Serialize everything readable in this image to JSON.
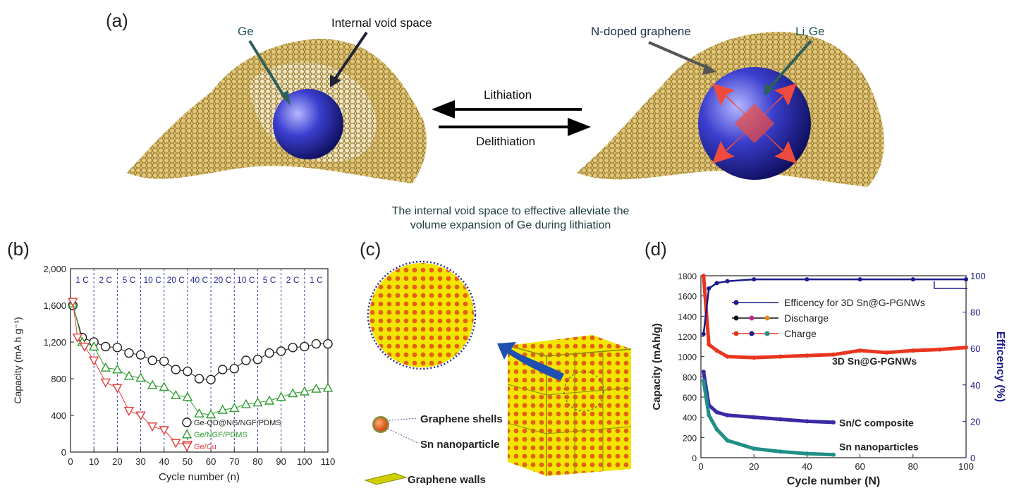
{
  "panel_a": {
    "label": "(a)",
    "ge_label": "Ge",
    "void_label": "Internal void space",
    "ngraphene_label": "N-doped graphene",
    "lixge_li": "Li",
    "lixge_x": "x",
    "lixge_ge": "Ge",
    "lithiation": "Lithiation",
    "delithiation": "Delithiation",
    "note_line1": "The internal void space to effective alleviate the",
    "note_line2": "volume expansion of Ge during lithiation"
  },
  "panel_b": {
    "label": "(b)",
    "chart_data": {
      "type": "scatter",
      "xlabel": "Cycle number (n)",
      "ylabel": "Capacity (mA h g⁻¹)",
      "xlim": [
        0,
        110
      ],
      "ylim": [
        0,
        2000
      ],
      "xticks": [
        "0",
        "10",
        "20",
        "30",
        "40",
        "50",
        "60",
        "70",
        "80",
        "90",
        "100",
        "110"
      ],
      "yticks": [
        "0",
        "400",
        "800",
        "1,200",
        "1,600",
        "2,000"
      ],
      "rates": [
        "1 C",
        "2 C",
        "5 C",
        "10 C",
        "20 C",
        "40 C",
        "20 C",
        "10 C",
        "5 C",
        "2 C",
        "1 C"
      ],
      "rate_boundaries": [
        10,
        20,
        30,
        40,
        50,
        60,
        70,
        80,
        90,
        100
      ],
      "series": [
        {
          "name": "Ge-QD@NG/NGF/PDMS",
          "color": "#222222",
          "marker": "circle",
          "values": [
            [
              1,
              1600
            ],
            [
              5,
              1250
            ],
            [
              10,
              1200
            ],
            [
              15,
              1150
            ],
            [
              20,
              1140
            ],
            [
              25,
              1080
            ],
            [
              30,
              1060
            ],
            [
              35,
              1000
            ],
            [
              40,
              990
            ],
            [
              45,
              900
            ],
            [
              50,
              880
            ],
            [
              55,
              800
            ],
            [
              60,
              790
            ],
            [
              65,
              900
            ],
            [
              70,
              910
            ],
            [
              75,
              1000
            ],
            [
              80,
              1010
            ],
            [
              85,
              1080
            ],
            [
              90,
              1100
            ],
            [
              95,
              1140
            ],
            [
              100,
              1150
            ],
            [
              105,
              1180
            ],
            [
              110,
              1180
            ]
          ]
        },
        {
          "name": "Ge/NGF/PDMS",
          "color": "#2e9b2e",
          "marker": "triangle-up",
          "values": [
            [
              1,
              1620
            ],
            [
              5,
              1200
            ],
            [
              10,
              1150
            ],
            [
              15,
              920
            ],
            [
              20,
              900
            ],
            [
              25,
              830
            ],
            [
              30,
              810
            ],
            [
              35,
              730
            ],
            [
              40,
              710
            ],
            [
              45,
              620
            ],
            [
              50,
              600
            ],
            [
              55,
              420
            ],
            [
              60,
              410
            ],
            [
              65,
              460
            ],
            [
              70,
              480
            ],
            [
              75,
              520
            ],
            [
              80,
              540
            ],
            [
              85,
              560
            ],
            [
              90,
              600
            ],
            [
              95,
              640
            ],
            [
              100,
              660
            ],
            [
              105,
              690
            ],
            [
              110,
              700
            ]
          ]
        },
        {
          "name": "Ge/Cu",
          "color": "#e23b3b",
          "marker": "triangle-down",
          "values": [
            [
              1,
              1640
            ],
            [
              3,
              1250
            ],
            [
              6,
              1150
            ],
            [
              10,
              1000
            ],
            [
              15,
              760
            ],
            [
              20,
              700
            ],
            [
              25,
              450
            ],
            [
              30,
              400
            ],
            [
              35,
              280
            ],
            [
              40,
              240
            ],
            [
              45,
              100
            ],
            [
              50,
              80
            ]
          ]
        }
      ]
    }
  },
  "panel_c": {
    "label": "(c)",
    "shells_label": "Graphene shells",
    "sn_label": "Sn nanoparticle",
    "walls_label": "Graphene walls"
  },
  "panel_d": {
    "label": "(d)",
    "chart_data": {
      "type": "scatter",
      "xlabel": "Cycle number (N)",
      "ylabel": "Capacity (mAh/g)",
      "y2label": "Efficency (%)",
      "xlim": [
        0,
        100
      ],
      "ylim": [
        0,
        1800
      ],
      "y2lim": [
        0,
        100
      ],
      "xticks": [
        "0",
        "20",
        "40",
        "60",
        "80",
        "100"
      ],
      "yticks": [
        "0",
        "200",
        "400",
        "600",
        "800",
        "1000",
        "1200",
        "1400",
        "1600",
        "1800"
      ],
      "y2ticks": [
        "0",
        "20",
        "40",
        "60",
        "80",
        "100"
      ],
      "legend": [
        "Efficency for 3D Sn@G-PGNWs",
        "Discharge",
        "Charge"
      ],
      "annotations": [
        "3D Sn@G-PGNWs",
        "Sn/C composite",
        "Sn nanoparticles"
      ],
      "series": [
        {
          "name": "3D Sn@G-PGNWs",
          "color": "#e8361e",
          "values": [
            [
              1,
              1800
            ],
            [
              3,
              1120
            ],
            [
              6,
              1060
            ],
            [
              10,
              1000
            ],
            [
              20,
              990
            ],
            [
              30,
              1000
            ],
            [
              40,
              1010
            ],
            [
              50,
              1020
            ],
            [
              60,
              1060
            ],
            [
              70,
              1040
            ],
            [
              80,
              1060
            ],
            [
              90,
              1070
            ],
            [
              100,
              1090
            ]
          ]
        },
        {
          "name": "Sn/C composite",
          "color": "#3a2aa6",
          "values": [
            [
              1,
              850
            ],
            [
              3,
              520
            ],
            [
              6,
              450
            ],
            [
              10,
              420
            ],
            [
              20,
              400
            ],
            [
              30,
              380
            ],
            [
              40,
              360
            ],
            [
              50,
              350
            ]
          ]
        },
        {
          "name": "Sn nanoparticles",
          "color": "#1f8f86",
          "values": [
            [
              1,
              760
            ],
            [
              3,
              420
            ],
            [
              6,
              280
            ],
            [
              10,
              170
            ],
            [
              20,
              90
            ],
            [
              30,
              60
            ],
            [
              40,
              40
            ],
            [
              50,
              30
            ]
          ]
        },
        {
          "name": "Efficency for 3D Sn@G-PGNWs",
          "color": "#1a1a8c",
          "axis": "right",
          "values": [
            [
              1,
              68
            ],
            [
              3,
              93
            ],
            [
              6,
              96
            ],
            [
              10,
              97
            ],
            [
              20,
              98
            ],
            [
              40,
              98
            ],
            [
              60,
              98
            ],
            [
              80,
              98
            ],
            [
              100,
              98
            ]
          ]
        }
      ]
    }
  }
}
